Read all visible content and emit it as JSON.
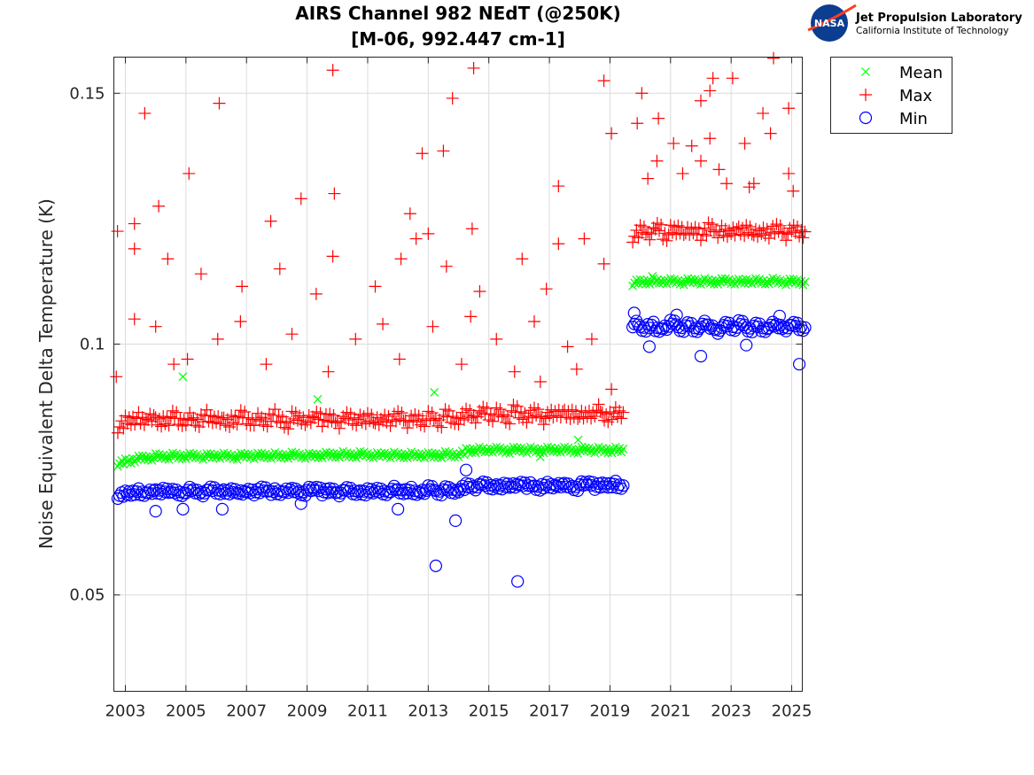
{
  "chart_data": {
    "type": "scatter",
    "title": [
      "AIRS Channel 982 NEdT (@250K)",
      "[M-06, 992.447 cm-1]"
    ],
    "xlabel": "",
    "ylabel": "Noise Equivalent Delta Temperature (K)",
    "xlim": [
      2002.62,
      2025.35
    ],
    "ylim": [
      0.0308,
      0.1572
    ],
    "xticks": [
      2003,
      2005,
      2007,
      2009,
      2011,
      2013,
      2015,
      2017,
      2019,
      2021,
      2023,
      2025
    ],
    "xtick_labels": [
      "2003",
      "2005",
      "2007",
      "2009",
      "2011",
      "2013",
      "2015",
      "2017",
      "2019",
      "2021",
      "2023",
      "2025"
    ],
    "yticks": [
      0.05,
      0.1,
      0.15
    ],
    "ytick_labels": [
      "0.05",
      "0.1",
      "0.15"
    ],
    "grid": true,
    "legend_position": "outside-top-right",
    "series": [
      {
        "name": "Mean",
        "marker": "x",
        "color": "#00ff00",
        "segments": [
          {
            "x_start": 2002.75,
            "x_step": 0.25,
            "values": [
              0.0762,
              0.0767,
              0.0771,
              0.0773,
              0.0774,
              0.0776,
              0.0776,
              0.0777,
              0.0776,
              0.0777,
              0.0777,
              0.0776,
              0.0777,
              0.0778,
              0.0777,
              0.0776,
              0.0777,
              0.0778,
              0.0777,
              0.0778,
              0.0778,
              0.0777,
              0.0778,
              0.0779,
              0.0778,
              0.0777,
              0.0778,
              0.0779,
              0.0779,
              0.078,
              0.0779,
              0.0779,
              0.078,
              0.0779,
              0.0778,
              0.078,
              0.0779,
              0.0778,
              0.0779,
              0.0778,
              0.0779,
              0.0778,
              0.0779,
              0.078,
              0.0779,
              0.0781,
              0.0788,
              0.0789,
              0.0788,
              0.079,
              0.0789,
              0.0788,
              0.0789,
              0.079,
              0.0789,
              0.0788,
              0.0789,
              0.0789,
              0.079,
              0.0789,
              0.0788,
              0.0789,
              0.079,
              0.0789,
              0.0788,
              0.0789,
              0.0788
            ]
          },
          {
            "x_start": 2019.75,
            "x_step": 0.25,
            "values": [
              0.1122,
              0.1124,
              0.1125,
              0.1124,
              0.1126,
              0.1125,
              0.1124,
              0.1125,
              0.1126,
              0.1125,
              0.1124,
              0.1125,
              0.1126,
              0.1125,
              0.1124,
              0.1126,
              0.1125,
              0.1124,
              0.1126,
              0.1125,
              0.1124,
              0.1125,
              0.1124
            ]
          }
        ],
        "outliers": [
          [
            2004.9,
            0.0935
          ],
          [
            2013.2,
            0.0904
          ],
          [
            2017.95,
            0.0809
          ],
          [
            2016.7,
            0.0775
          ],
          [
            2020.4,
            0.1135
          ],
          [
            2009.35,
            0.089
          ]
        ]
      },
      {
        "name": "Max",
        "marker": "+",
        "color": "#ff0000",
        "segments": [
          {
            "x_start": 2002.75,
            "x_step": 0.25,
            "values": [
              0.0835,
              0.0848,
              0.0852,
              0.0845,
              0.0858,
              0.0842,
              0.085,
              0.0855,
              0.0846,
              0.0851,
              0.0844,
              0.0857,
              0.0849,
              0.0853,
              0.0841,
              0.0852,
              0.0856,
              0.0847,
              0.085,
              0.0845,
              0.0858,
              0.0849,
              0.0843,
              0.0854,
              0.0851,
              0.0846,
              0.0859,
              0.0848,
              0.0852,
              0.0844,
              0.0855,
              0.085,
              0.0847,
              0.0856,
              0.0842,
              0.0853,
              0.0849,
              0.0857,
              0.0845,
              0.0851,
              0.0848,
              0.0854,
              0.0846,
              0.0858,
              0.085,
              0.0852,
              0.0862,
              0.0855,
              0.0866,
              0.0858,
              0.0861,
              0.0853,
              0.0867,
              0.0859,
              0.0856,
              0.0864,
              0.0852,
              0.086,
              0.0866,
              0.0857,
              0.0863,
              0.0855,
              0.0861,
              0.0868,
              0.0854,
              0.0862,
              0.0858
            ]
          },
          {
            "x_start": 2019.75,
            "x_step": 0.25,
            "values": [
              0.1215,
              0.1228,
              0.122,
              0.1232,
              0.1218,
              0.1225,
              0.123,
              0.1221,
              0.1227,
              0.1219,
              0.1233,
              0.1224,
              0.122,
              0.1229,
              0.1222,
              0.1231,
              0.1217,
              0.1226,
              0.1223,
              0.123,
              0.1219,
              0.1228,
              0.1224
            ]
          }
        ],
        "outliers": [
          [
            2002.74,
            0.1225
          ],
          [
            2003.64,
            0.146
          ],
          [
            2006.1,
            0.148
          ],
          [
            2009.85,
            0.1546
          ],
          [
            2005.1,
            0.134
          ],
          [
            2004.1,
            0.1275
          ],
          [
            2003.3,
            0.124
          ],
          [
            2003.3,
            0.119
          ],
          [
            2004.4,
            0.117
          ],
          [
            2008.8,
            0.129
          ],
          [
            2009.9,
            0.13
          ],
          [
            2009.85,
            0.1175
          ],
          [
            2007.8,
            0.1245
          ],
          [
            2008.1,
            0.115
          ],
          [
            2005.5,
            0.114
          ],
          [
            2006.85,
            0.1115
          ],
          [
            2012.8,
            0.138
          ],
          [
            2013.5,
            0.1385
          ],
          [
            2013.8,
            0.149
          ],
          [
            2014.5,
            0.155
          ],
          [
            2013.0,
            0.122
          ],
          [
            2012.6,
            0.121
          ],
          [
            2012.4,
            0.126
          ],
          [
            2013.6,
            0.1155
          ],
          [
            2014.45,
            0.123
          ],
          [
            2014.7,
            0.1105
          ],
          [
            2017.3,
            0.1315
          ],
          [
            2018.8,
            0.1525
          ],
          [
            2019.05,
            0.142
          ],
          [
            2018.8,
            0.116
          ],
          [
            2018.15,
            0.121
          ],
          [
            2017.3,
            0.12
          ],
          [
            2016.1,
            0.117
          ],
          [
            2016.9,
            0.111
          ],
          [
            2011.25,
            0.1115
          ],
          [
            2012.1,
            0.117
          ],
          [
            2009.3,
            0.11
          ],
          [
            2006.05,
            0.101
          ],
          [
            2004.0,
            0.1035
          ],
          [
            2003.3,
            0.105
          ],
          [
            2004.6,
            0.096
          ],
          [
            2005.05,
            0.097
          ],
          [
            2006.8,
            0.1045
          ],
          [
            2008.5,
            0.102
          ],
          [
            2010.6,
            0.101
          ],
          [
            2011.5,
            0.104
          ],
          [
            2013.15,
            0.1035
          ],
          [
            2014.4,
            0.1055
          ],
          [
            2015.25,
            0.101
          ],
          [
            2016.5,
            0.1045
          ],
          [
            2017.6,
            0.0995
          ],
          [
            2018.4,
            0.101
          ],
          [
            2002.7,
            0.0935
          ],
          [
            2007.65,
            0.096
          ],
          [
            2009.7,
            0.0945
          ],
          [
            2012.05,
            0.097
          ],
          [
            2014.1,
            0.096
          ],
          [
            2015.85,
            0.0945
          ],
          [
            2016.7,
            0.0925
          ],
          [
            2017.9,
            0.095
          ],
          [
            2019.05,
            0.091
          ],
          [
            2020.05,
            0.15
          ],
          [
            2019.9,
            0.144
          ],
          [
            2020.6,
            0.145
          ],
          [
            2022.0,
            0.1485
          ],
          [
            2022.3,
            0.1505
          ],
          [
            2023.05,
            0.153
          ],
          [
            2022.4,
            0.153
          ],
          [
            2024.4,
            0.157
          ],
          [
            2024.05,
            0.146
          ],
          [
            2024.9,
            0.147
          ],
          [
            2021.1,
            0.14
          ],
          [
            2021.7,
            0.1395
          ],
          [
            2022.3,
            0.141
          ],
          [
            2023.45,
            0.14
          ],
          [
            2024.3,
            0.142
          ],
          [
            2022.85,
            0.132
          ],
          [
            2023.6,
            0.1313
          ],
          [
            2023.75,
            0.132
          ],
          [
            2020.55,
            0.1365
          ],
          [
            2022.0,
            0.1365
          ],
          [
            2024.9,
            0.134
          ],
          [
            2020.25,
            0.133
          ],
          [
            2021.4,
            0.134
          ],
          [
            2022.6,
            0.1348
          ],
          [
            2025.05,
            0.1305
          ]
        ]
      },
      {
        "name": "Min",
        "marker": "o",
        "color": "#0000ff",
        "segments": [
          {
            "x_start": 2002.75,
            "x_step": 0.25,
            "values": [
              0.0698,
              0.0703,
              0.0706,
              0.0701,
              0.0708,
              0.0704,
              0.071,
              0.0705,
              0.0702,
              0.0709,
              0.0706,
              0.0703,
              0.0711,
              0.0707,
              0.0704,
              0.0709,
              0.0702,
              0.0708,
              0.0705,
              0.0711,
              0.0706,
              0.0703,
              0.071,
              0.0707,
              0.0704,
              0.0709,
              0.0712,
              0.0705,
              0.0708,
              0.0703,
              0.071,
              0.0706,
              0.0702,
              0.0709,
              0.0707,
              0.0704,
              0.0711,
              0.0706,
              0.0709,
              0.0703,
              0.0708,
              0.0712,
              0.0705,
              0.071,
              0.0707,
              0.0711,
              0.0718,
              0.0715,
              0.0721,
              0.0717,
              0.0714,
              0.072,
              0.0716,
              0.0722,
              0.0718,
              0.0713,
              0.0719,
              0.0716,
              0.0721,
              0.0717,
              0.0714,
              0.072,
              0.0723,
              0.0716,
              0.0719,
              0.0721,
              0.0715
            ]
          },
          {
            "x_start": 2019.75,
            "x_step": 0.25,
            "values": [
              0.104,
              0.103,
              0.1038,
              0.1028,
              0.1035,
              0.1042,
              0.1031,
              0.1037,
              0.1029,
              0.104,
              0.1034,
              0.1027,
              0.1039,
              0.1033,
              0.1041,
              0.103,
              0.1036,
              0.1029,
              0.1038,
              0.1035,
              0.1032,
              0.1039,
              0.1033
            ]
          }
        ],
        "outliers": [
          [
            2013.25,
            0.0558
          ],
          [
            2015.95,
            0.0527
          ],
          [
            2013.9,
            0.0648
          ],
          [
            2014.25,
            0.0749
          ],
          [
            2025.25,
            0.096
          ],
          [
            2004.0,
            0.0667
          ],
          [
            2004.9,
            0.0671
          ],
          [
            2006.2,
            0.0671
          ],
          [
            2008.8,
            0.0682
          ],
          [
            2012.0,
            0.0671
          ],
          [
            2022.0,
            0.0976
          ],
          [
            2019.8,
            0.1062
          ],
          [
            2020.3,
            0.0995
          ],
          [
            2021.2,
            0.1058
          ],
          [
            2023.5,
            0.0998
          ],
          [
            2024.6,
            0.1056
          ]
        ]
      }
    ]
  },
  "logo": {
    "agency": "NASA",
    "line1": "Jet Propulsion Laboratory",
    "line2": "California Institute of Technology"
  }
}
